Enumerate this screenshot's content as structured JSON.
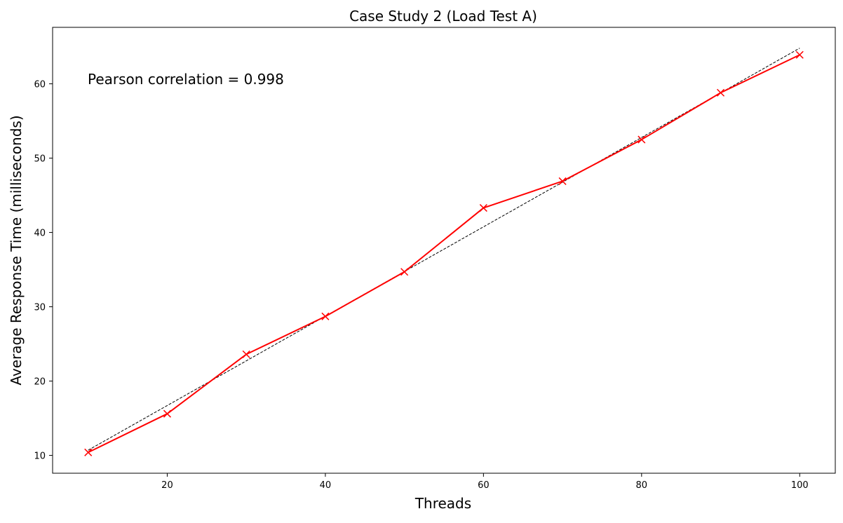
{
  "chart_data": {
    "type": "line",
    "title": "Case Study 2 (Load Test A)",
    "xlabel": "Threads",
    "ylabel": "Average Response Time (milliseconds)",
    "annotation": "Pearson correlation = 0.998",
    "xlim": [
      5.5,
      104.5
    ],
    "ylim": [
      7.6,
      67.6
    ],
    "xticks": [
      20,
      40,
      60,
      80,
      100
    ],
    "yticks": [
      10,
      20,
      30,
      40,
      50,
      60
    ],
    "grid": false,
    "series": [
      {
        "style": "solid",
        "marker": "x",
        "color": "#ff0000",
        "x": [
          10,
          20,
          30,
          40,
          50,
          60,
          70,
          80,
          90,
          100
        ],
        "y": [
          10.4,
          15.6,
          23.6,
          28.7,
          34.7,
          43.3,
          46.9,
          52.5,
          58.8,
          63.9
        ]
      }
    ],
    "fit_line": {
      "style": "dashed",
      "color": "#000000",
      "x": [
        10,
        100
      ],
      "y": [
        10.7,
        64.8
      ]
    }
  }
}
